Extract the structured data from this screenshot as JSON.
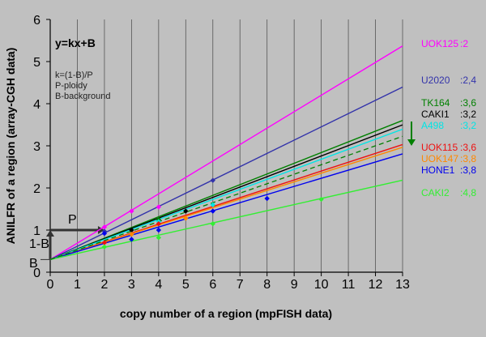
{
  "chart_data": {
    "type": "line",
    "xlabel": "copy number of a region (mpFISH data)",
    "ylabel": "ANILFR of a region (array-CGH data)",
    "xlim": [
      0,
      13
    ],
    "ylim": [
      0,
      6
    ],
    "x_ticks": [
      "0",
      "1",
      "2",
      "3",
      "4",
      "5",
      "6",
      "7",
      "8",
      "9",
      "10",
      "11",
      "12",
      "13"
    ],
    "y_ticks": [
      "0",
      "1",
      "2",
      "3",
      "4",
      "5",
      "6"
    ],
    "grid": "vertical",
    "formula": "y=kx+B",
    "notes": [
      "k=(1-B)/P",
      "P-ploidy",
      "B-background"
    ],
    "marker_labels": {
      "p": "P",
      "one_minus_b": "1-B",
      "b": "B"
    },
    "background": 0.3,
    "series": [
      {
        "name": "UOK125",
        "ploidy_text": ":2",
        "color": "#ff00ff",
        "slope": 0.39,
        "intercept": 0.3,
        "points": [
          [
            2,
            1.07
          ],
          [
            3,
            1.45
          ],
          [
            4,
            1.55
          ]
        ]
      },
      {
        "name": "U2020",
        "ploidy_text": ":2,4",
        "color": "#3333aa",
        "slope": 0.315,
        "intercept": 0.3,
        "points": [
          [
            2,
            0.97
          ],
          [
            6,
            2.18
          ]
        ]
      },
      {
        "name": "TK164",
        "ploidy_text": ":3,6",
        "color": "#008000",
        "slope": 0.254,
        "intercept": 0.3,
        "points": [
          [
            4,
            1.25
          ]
        ]
      },
      {
        "name": "CAKI1",
        "ploidy_text": ":3,2",
        "color": "#000000",
        "slope": 0.246,
        "intercept": 0.3,
        "points": [
          [
            3,
            1.0
          ],
          [
            5,
            1.45
          ]
        ]
      },
      {
        "name": "A498",
        "ploidy_text": ":3,2",
        "color": "#00e5e5",
        "slope": 0.238,
        "intercept": 0.3,
        "points": [
          [
            4,
            1.2
          ],
          [
            6,
            1.6
          ]
        ]
      },
      {
        "name": "UOK115",
        "ploidy_text": ":3,6",
        "color": "#ee1111",
        "slope": 0.21,
        "intercept": 0.3,
        "points": [
          [
            2,
            0.7
          ],
          [
            4,
            1.15
          ]
        ]
      },
      {
        "name": "UOK147",
        "ploidy_text": ":3,8",
        "color": "#ff8800",
        "slope": 0.205,
        "intercept": 0.3,
        "points": [
          [
            3,
            0.9
          ],
          [
            5,
            1.28
          ]
        ]
      },
      {
        "name": "HONE1",
        "ploidy_text": ":3,8",
        "color": "#0000ee",
        "slope": 0.193,
        "intercept": 0.3,
        "points": [
          [
            2,
            0.92
          ],
          [
            3,
            0.78
          ],
          [
            4,
            1.0
          ],
          [
            6,
            1.45
          ],
          [
            8,
            1.75
          ]
        ]
      },
      {
        "name": "CAKI2",
        "ploidy_text": ":4,8",
        "color": "#33ee33",
        "slope": 0.145,
        "intercept": 0.3,
        "points": [
          [
            2,
            0.6
          ],
          [
            4,
            0.82
          ],
          [
            6,
            1.15
          ],
          [
            10,
            1.73
          ]
        ]
      }
    ]
  }
}
